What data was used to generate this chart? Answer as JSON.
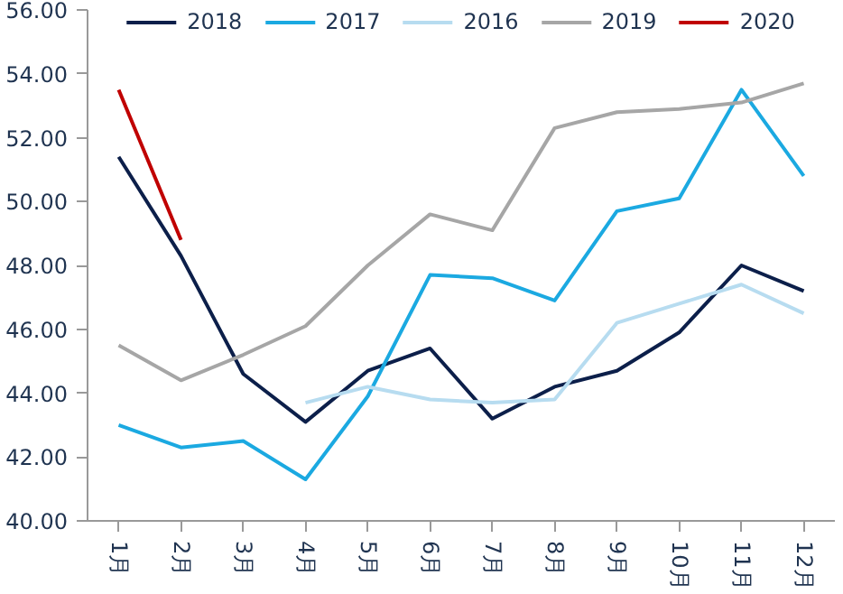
{
  "chart_data": {
    "type": "line",
    "categories": [
      "1月",
      "2月",
      "3月",
      "4月",
      "5月",
      "6月",
      "7月",
      "8月",
      "9月",
      "10月",
      "11月",
      "12月"
    ],
    "series": [
      {
        "name": "2018",
        "color": "#0c1f4a",
        "values": [
          51.4,
          48.3,
          44.6,
          43.1,
          44.7,
          45.4,
          43.2,
          44.2,
          44.7,
          45.9,
          48.0,
          47.2
        ]
      },
      {
        "name": "2017",
        "color": "#1ba9e1",
        "values": [
          43.0,
          42.3,
          42.5,
          41.3,
          43.9,
          47.7,
          47.6,
          46.9,
          49.7,
          50.1,
          53.5,
          50.8
        ]
      },
      {
        "name": "2016",
        "color": "#b7dcf0",
        "values": [
          null,
          null,
          null,
          43.7,
          44.2,
          43.8,
          43.7,
          43.8,
          46.2,
          46.8,
          47.4,
          46.5
        ]
      },
      {
        "name": "2019",
        "color": "#a6a6a6",
        "values": [
          45.5,
          44.4,
          45.2,
          46.1,
          48.0,
          49.6,
          49.1,
          52.3,
          52.8,
          52.9,
          53.1,
          53.7
        ]
      },
      {
        "name": "2020",
        "color": "#c00000",
        "values": [
          53.5,
          48.8,
          null,
          null,
          null,
          null,
          null,
          null,
          null,
          null,
          null,
          null
        ]
      }
    ],
    "ylim": [
      40,
      56
    ],
    "yticks": [
      {
        "value": 40,
        "label": "40.00"
      },
      {
        "value": 42,
        "label": "42.00"
      },
      {
        "value": 44,
        "label": "44.00"
      },
      {
        "value": 46,
        "label": "46.00"
      },
      {
        "value": 48,
        "label": "48.00"
      },
      {
        "value": 50,
        "label": "50.00"
      },
      {
        "value": 52,
        "label": "52.00"
      },
      {
        "value": 54,
        "label": "54.00"
      },
      {
        "value": 56,
        "label": "56.00"
      }
    ],
    "grid": false,
    "legend": "top",
    "marker": "none",
    "line_style": "solid"
  }
}
